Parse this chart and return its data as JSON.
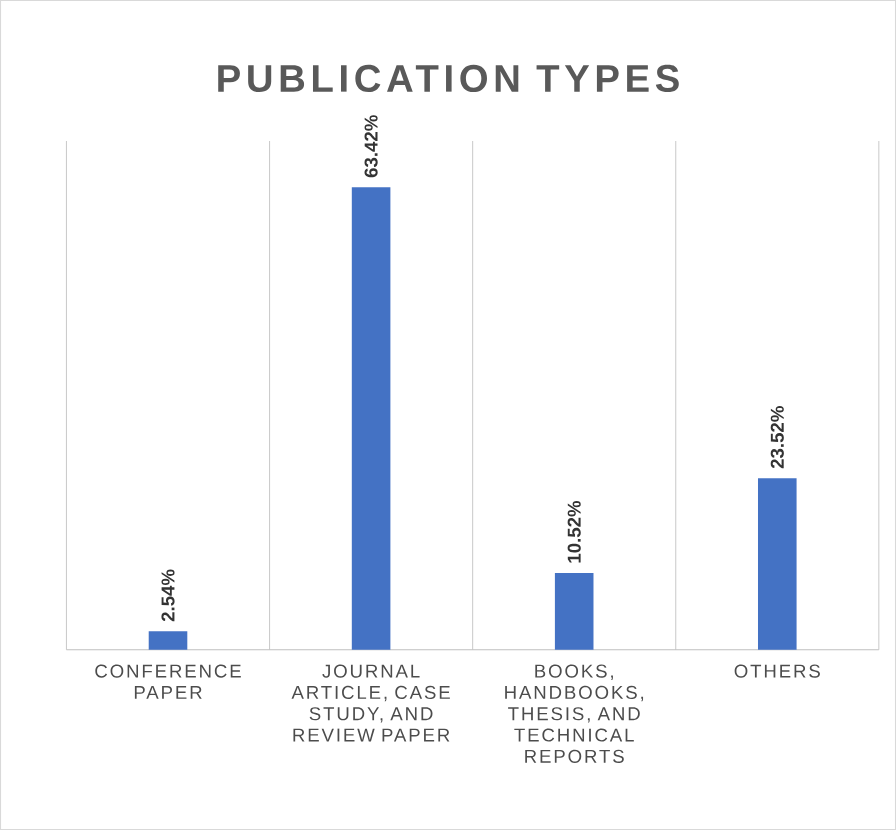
{
  "chart_data": {
    "type": "bar",
    "title": "PUBLICATION TYPES",
    "categories": [
      "CONFERENCE PAPER",
      "JOURNAL ARTICLE, CASE STUDY, AND REVIEW PAPER",
      "BOOKS, HANDBOOKS, THESIS, AND TECHNICAL REPORTS",
      "OTHERS"
    ],
    "values": [
      2.54,
      63.42,
      10.52,
      23.52
    ],
    "value_labels": [
      "2.54%",
      "63.42%",
      "10.52%",
      "23.52%"
    ],
    "color": "#4472c4",
    "grid": "x"
  }
}
